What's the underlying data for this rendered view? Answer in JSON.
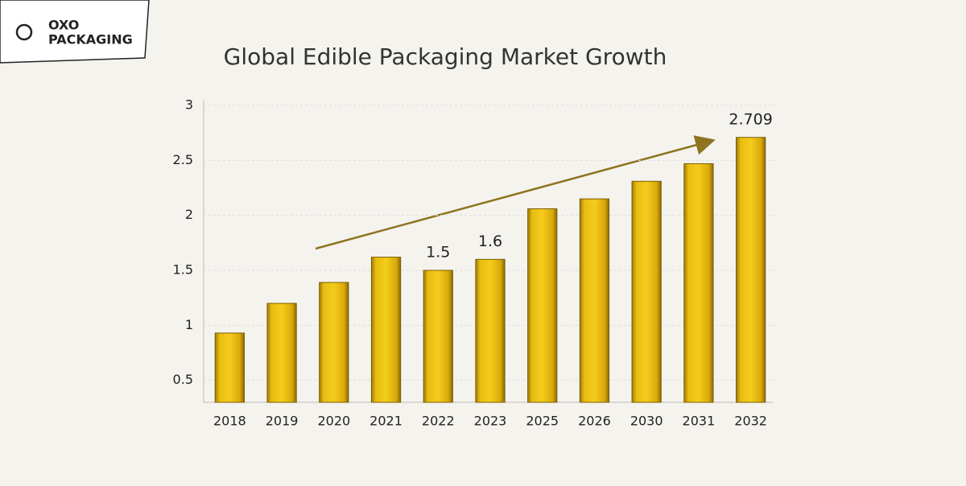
{
  "brand": {
    "line1": "OXO",
    "line2": "PACKAGING"
  },
  "chart_data": {
    "type": "bar",
    "title": "Global Edible Packaging Market Growth",
    "categories": [
      "2018",
      "2019",
      "2020",
      "2021",
      "2022",
      "2023",
      "2025",
      "2026",
      "2030",
      "2031",
      "2032"
    ],
    "values": [
      0.93,
      1.2,
      1.39,
      1.62,
      1.5,
      1.6,
      2.06,
      2.15,
      2.31,
      2.47,
      2.709
    ],
    "value_labels": [
      null,
      null,
      null,
      null,
      "1.5",
      "1.6",
      null,
      null,
      null,
      null,
      "2.709"
    ],
    "color": "#e6b80c",
    "ylim": [
      0.3,
      3
    ],
    "yticks": [
      0.5,
      1,
      1.5,
      2,
      2.5,
      3
    ],
    "grid": true
  }
}
